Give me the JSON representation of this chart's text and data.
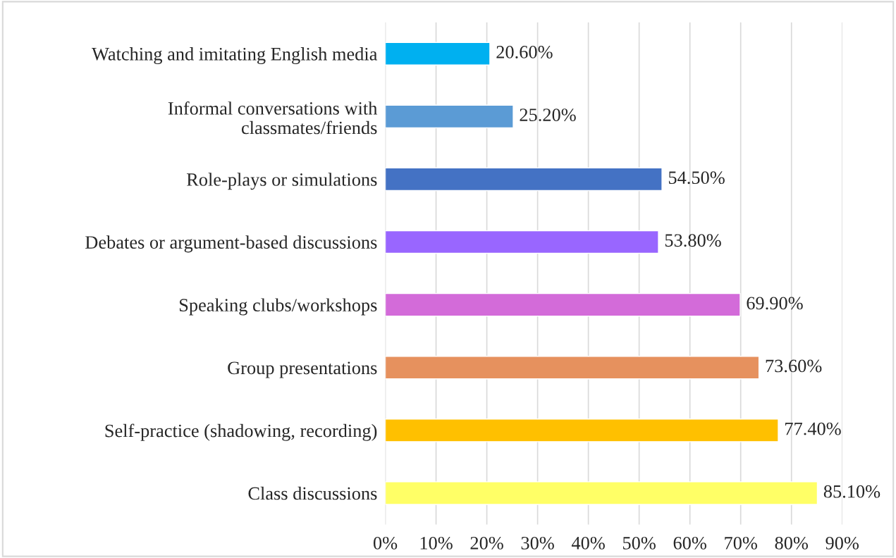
{
  "chart_data": {
    "type": "bar",
    "orientation": "horizontal",
    "categories": [
      "Watching and imitating English media",
      "Informal conversations with\nclassmates/friends",
      "Role-plays or simulations",
      "Debates or argument-based discussions",
      "Speaking clubs/workshops",
      "Group presentations",
      "Self-practice (shadowing, recording)",
      "Class discussions"
    ],
    "values": [
      20.6,
      25.2,
      54.5,
      53.8,
      69.9,
      73.6,
      77.4,
      85.1
    ],
    "colors": [
      "#00b0f0",
      "#5b9bd5",
      "#4472c4",
      "#9966ff",
      "#d36bd9",
      "#e6915e",
      "#ffc000",
      "#ffff66"
    ],
    "value_labels": [
      "20.60%",
      "25.20%",
      "54.50%",
      "53.80%",
      "69.90%",
      "73.60%",
      "77.40%",
      "85.10%"
    ],
    "xlim": [
      0,
      90
    ],
    "xticks": [
      {
        "value": 0,
        "label": "0%"
      },
      {
        "value": 10,
        "label": "10%"
      },
      {
        "value": 20,
        "label": "20%"
      },
      {
        "value": 30,
        "label": "30%"
      },
      {
        "value": 40,
        "label": "40%"
      },
      {
        "value": 50,
        "label": "50%"
      },
      {
        "value": 60,
        "label": "60%"
      },
      {
        "value": 70,
        "label": "70%"
      },
      {
        "value": 80,
        "label": "80%"
      },
      {
        "value": 90,
        "label": "90%"
      }
    ],
    "grid": "x",
    "legend": false
  }
}
